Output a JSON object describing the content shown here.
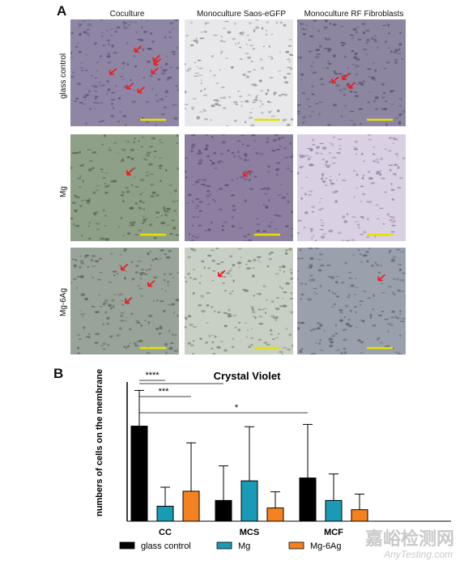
{
  "panel_a": {
    "letter": "A",
    "columns": [
      "Coculture",
      "Monoculture Saos-eGFP",
      "Monoculture RF Fibroblasts"
    ],
    "rows": [
      "glass control",
      "Mg",
      "Mg-6Ag"
    ],
    "scale_bar_color": "#e8e000",
    "arrow_color": "#e82020",
    "arrow_counts": [
      [
        7,
        0,
        3
      ],
      [
        1,
        1,
        0
      ],
      [
        3,
        1,
        1
      ]
    ]
  },
  "panel_b": {
    "letter": "B"
  },
  "chart_data": {
    "type": "bar",
    "title": "Crystal Violet",
    "ylabel": "numbers of cells on the membrane",
    "xlabel": "",
    "categories": [
      "CC",
      "MCS",
      "MCF"
    ],
    "ylim": [
      0,
      25
    ],
    "series": [
      {
        "name": "glass control",
        "color": "#000000",
        "values": [
          16.5,
          3.6,
          7.5
        ],
        "errors": [
          6.2,
          6.0,
          9.3
        ]
      },
      {
        "name": "Mg",
        "color": "#1a9bb5",
        "values": [
          2.6,
          7.0,
          3.6
        ],
        "errors": [
          3.3,
          9.4,
          4.6
        ]
      },
      {
        "name": "Mg-6Ag",
        "color": "#f58220",
        "values": [
          5.2,
          2.3,
          2.0
        ],
        "errors": [
          8.4,
          2.8,
          2.7
        ]
      }
    ],
    "significance": [
      {
        "label": "****",
        "from": "CC glass control",
        "to": "CC Mg"
      },
      {
        "label": "***",
        "from": "CC glass control",
        "to": "CC Mg-6Ag"
      },
      {
        "label": "****",
        "from": "CC glass control",
        "to": "MCS glass control"
      },
      {
        "label": "*",
        "from": "CC glass control",
        "to": "MCF glass control"
      }
    ]
  },
  "watermark": {
    "cn": "嘉峪检测网",
    "en": "AnyTesting.com"
  }
}
